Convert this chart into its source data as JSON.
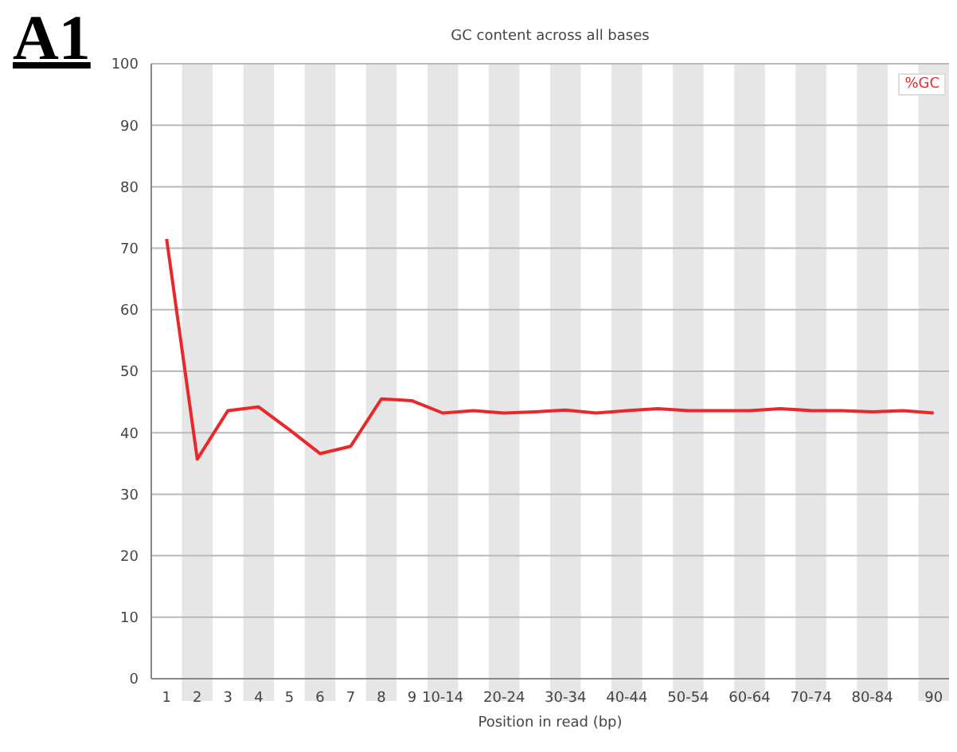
{
  "chart_data": {
    "type": "line",
    "title": "GC content across all bases",
    "xlabel": "Position in read (bp)",
    "annotations": [
      "A1"
    ],
    "categories": [
      "1",
      "2",
      "3",
      "4",
      "5",
      "6",
      "7",
      "8",
      "9",
      "10-14",
      null,
      "20-24",
      null,
      "30-34",
      null,
      "40-44",
      null,
      "50-54",
      null,
      "60-64",
      null,
      "70-74",
      null,
      "80-84",
      null,
      "90"
    ],
    "series": [
      {
        "name": "%GC",
        "color": "#e8282a",
        "values": [
          71.5,
          35.7,
          43.6,
          44.2,
          40.5,
          36.6,
          37.8,
          45.5,
          45.2,
          43.2,
          43.6,
          43.2,
          43.4,
          43.7,
          43.2,
          43.6,
          43.9,
          43.6,
          43.6,
          43.6,
          43.9,
          43.6,
          43.6,
          43.4,
          43.6,
          43.2
        ]
      }
    ],
    "ylim": [
      0,
      100
    ],
    "yticks": [
      0,
      10,
      20,
      30,
      40,
      50,
      60,
      70,
      80,
      90,
      100
    ],
    "grid": "y",
    "legend": "top right",
    "marker": "none",
    "line_style": "solid"
  }
}
